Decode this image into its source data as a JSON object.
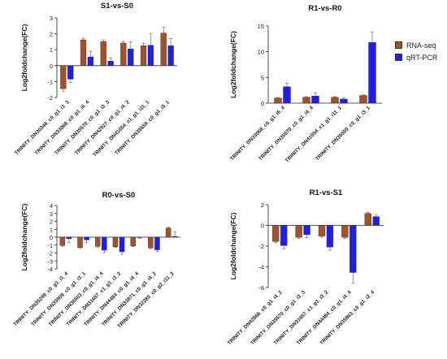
{
  "legend": {
    "rna_label": "RNA-seq",
    "qrt_label": "qRT-PCR",
    "rna_color": "#a0522d",
    "qrt_color": "#1f1fe6"
  },
  "chart_data": [
    {
      "type": "bar",
      "title": "S1-vs-S0",
      "ylabel": "Log2foldchange(FC)",
      "ylim": [
        -2,
        3
      ],
      "yticks": [
        -2,
        -1,
        0,
        1,
        2,
        3
      ],
      "categories": [
        "TRINITY_DN30346_c0_g1_i1_3",
        "TRINITY_DN33068_c0_g1_i6_4",
        "TRINITY_DN35570_c0_g1_i3_3",
        "TRINITY_DN42927_c0_g1_i4_2",
        "TRINITY_DN41054_c1_g1_i11_1",
        "TRINITY_DN35559_c0_g1_i3_1"
      ],
      "series": [
        {
          "name": "RNA-seq",
          "values": [
            -1.45,
            1.62,
            1.52,
            1.42,
            1.25,
            2.05
          ],
          "errors": [
            0.15,
            0.1,
            0.1,
            0.1,
            0.15,
            0.35
          ]
        },
        {
          "name": "qRT-PCR",
          "values": [
            -0.85,
            0.55,
            0.28,
            1.05,
            1.28,
            1.25
          ],
          "errors": [
            0.2,
            0.35,
            0.2,
            0.45,
            0.75,
            0.45
          ]
        }
      ]
    },
    {
      "type": "bar",
      "title": "R1-vs-R0",
      "ylabel": "Log2foldchange(FC)",
      "ylim": [
        0,
        15
      ],
      "yticks": [
        0,
        5,
        10,
        15
      ],
      "categories": [
        "TRINITY_DN33068_c0_g1_i6_4",
        "TRINITY_DN35570_c0_g1_i4_4",
        "TRINITY_DN41054_c1_g1_i11_1",
        "TRINITY_DN35559_c0_g1_i3_1"
      ],
      "series": [
        {
          "name": "RNA-seq",
          "values": [
            1.0,
            1.15,
            1.15,
            1.5
          ],
          "errors": [
            0.1,
            0.1,
            0.1,
            0.1
          ]
        },
        {
          "name": "qRT-PCR",
          "values": [
            3.2,
            1.4,
            0.8,
            11.8
          ],
          "errors": [
            0.7,
            0.6,
            0.3,
            2.0
          ]
        }
      ]
    },
    {
      "type": "bar",
      "title": "R0-vs-S0",
      "ylabel": "Log2foldchange(FC)",
      "ylim": [
        -4,
        4
      ],
      "yticks": [
        -4,
        -3,
        -2,
        -1,
        0,
        1,
        2,
        3,
        4
      ],
      "categories": [
        "TRINITY_DN35249_c0_g1_i1_4",
        "TRINITY_DN33909_c0_g1_i3_1",
        "TRINITY_DN36503_c0_g1_i4_4",
        "TRINITY_DN31657_c1_g1_i3_2",
        "TRINITY_DN44484_c0_g1_i4_4",
        "TRINITY_DN33871_c0_g1_i4_2",
        "TRINITY_DN32285_c0_g2_i11_3"
      ],
      "series": [
        {
          "name": "RNA-seq",
          "values": [
            -1.05,
            -1.3,
            -1.15,
            -1.2,
            -1.1,
            -1.35,
            1.15
          ],
          "errors": [
            0.1,
            0.1,
            0.1,
            0.1,
            0.1,
            0.1,
            0.1
          ]
        },
        {
          "name": "qRT-PCR",
          "values": [
            -0.2,
            -0.35,
            -1.65,
            -1.85,
            -0.05,
            -1.6,
            0.1
          ],
          "errors": [
            0.5,
            0.3,
            0.3,
            0.3,
            0.1,
            0.2,
            0.6
          ]
        }
      ]
    },
    {
      "type": "bar",
      "title": "R1-vs-S1",
      "ylabel": "Log2foldchange(FC)",
      "ylim": [
        -6,
        2
      ],
      "yticks": [
        -6,
        -4,
        -2,
        0,
        2
      ],
      "categories": [
        "TRINITY_DN42866_c0_g1_i4_2",
        "TRINITY_DN35570_c0_g1_i3_3",
        "TRINITY_DN31657_c1_g1_i3_2",
        "TRINITY_DN44484_c0_g1_i4_4",
        "TRINITY_DN35863_c0_g1_i2_4"
      ],
      "series": [
        {
          "name": "RNA-seq",
          "values": [
            -1.55,
            -1.15,
            -1.05,
            -1.15,
            1.15
          ],
          "errors": [
            0.1,
            0.1,
            0.1,
            0.1,
            0.1
          ]
        },
        {
          "name": "qRT-PCR",
          "values": [
            -1.95,
            -0.9,
            -2.1,
            -4.55,
            0.85
          ],
          "errors": [
            0.3,
            0.3,
            0.3,
            1.0,
            0.2
          ]
        }
      ]
    }
  ]
}
